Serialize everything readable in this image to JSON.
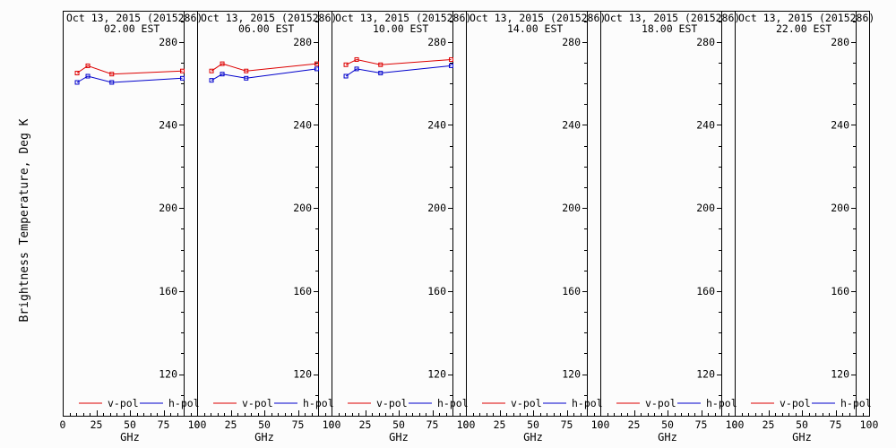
{
  "figure": {
    "ylabel": "Brightness Temperature, Deg K",
    "xlabel": "GHz",
    "colors": {
      "v_pol": "#dd0000",
      "h_pol": "#0000cc",
      "background": "#fcfcfc",
      "axis": "#000000"
    }
  },
  "chart_data": [
    {
      "type": "line",
      "title": "Oct 13, 2015 (2015286)",
      "subtitle": "02.00 EST",
      "xlabel": "GHz",
      "ylabel": "Brightness Temperature, Deg K",
      "xlim": [
        0,
        100
      ],
      "ylim": [
        100,
        295
      ],
      "x_ticks": [
        "0",
        "25",
        "50",
        "75",
        "100"
      ],
      "y_ticks": [
        "120",
        "160",
        "200",
        "240",
        "280"
      ],
      "legend_position": "bottom",
      "series": [
        {
          "name": "v-pol",
          "color": "#dd0000",
          "x": [
            10.7,
            18.7,
            36.5,
            89.0
          ],
          "y": [
            265,
            268.5,
            264.5,
            266
          ]
        },
        {
          "name": "h-pol",
          "color": "#0000cc",
          "x": [
            10.7,
            18.7,
            36.5,
            89.0
          ],
          "y": [
            260.5,
            263.5,
            260.5,
            262.5
          ]
        }
      ]
    },
    {
      "type": "line",
      "title": "Oct 13, 2015 (2015286)",
      "subtitle": "06.00 EST",
      "xlabel": "GHz",
      "ylabel": "",
      "xlim": [
        0,
        100
      ],
      "ylim": [
        100,
        295
      ],
      "x_ticks": [
        "0",
        "25",
        "50",
        "75",
        "100"
      ],
      "y_ticks": [
        "120",
        "160",
        "200",
        "240",
        "280"
      ],
      "legend_position": "bottom",
      "series": [
        {
          "name": "v-pol",
          "color": "#dd0000",
          "x": [
            10.7,
            18.7,
            36.5,
            89.0
          ],
          "y": [
            266,
            269.5,
            266,
            269.5
          ]
        },
        {
          "name": "h-pol",
          "color": "#0000cc",
          "x": [
            10.7,
            18.7,
            36.5,
            89.0
          ],
          "y": [
            261.5,
            264.5,
            262.5,
            267
          ]
        }
      ]
    },
    {
      "type": "line",
      "title": "Oct 13, 2015 (2015286)",
      "subtitle": "10.00 EST",
      "xlabel": "GHz",
      "ylabel": "",
      "xlim": [
        0,
        100
      ],
      "ylim": [
        100,
        295
      ],
      "x_ticks": [
        "0",
        "25",
        "50",
        "75",
        "100"
      ],
      "y_ticks": [
        "120",
        "160",
        "200",
        "240",
        "280"
      ],
      "legend_position": "bottom",
      "series": [
        {
          "name": "v-pol",
          "color": "#dd0000",
          "x": [
            10.7,
            18.7,
            36.5,
            89.0
          ],
          "y": [
            269,
            271.5,
            269,
            271.5
          ]
        },
        {
          "name": "h-pol",
          "color": "#0000cc",
          "x": [
            10.7,
            18.7,
            36.5,
            89.0
          ],
          "y": [
            263.5,
            267,
            265,
            268.5
          ]
        }
      ]
    },
    {
      "type": "line",
      "title": "Oct 13, 2015 (2015286)",
      "subtitle": "14.00 EST",
      "xlabel": "GHz",
      "ylabel": "",
      "xlim": [
        0,
        100
      ],
      "ylim": [
        100,
        295
      ],
      "x_ticks": [
        "0",
        "25",
        "50",
        "75",
        "100"
      ],
      "y_ticks": [
        "120",
        "160",
        "200",
        "240",
        "280"
      ],
      "legend_position": "bottom",
      "series": [
        {
          "name": "v-pol",
          "color": "#dd0000",
          "x": [],
          "y": []
        },
        {
          "name": "h-pol",
          "color": "#0000cc",
          "x": [],
          "y": []
        }
      ]
    },
    {
      "type": "line",
      "title": "Oct 13, 2015 (2015286)",
      "subtitle": "18.00 EST",
      "xlabel": "GHz",
      "ylabel": "",
      "xlim": [
        0,
        100
      ],
      "ylim": [
        100,
        295
      ],
      "x_ticks": [
        "0",
        "25",
        "50",
        "75",
        "100"
      ],
      "y_ticks": [
        "120",
        "160",
        "200",
        "240",
        "280"
      ],
      "legend_position": "bottom",
      "series": [
        {
          "name": "v-pol",
          "color": "#dd0000",
          "x": [],
          "y": []
        },
        {
          "name": "h-pol",
          "color": "#0000cc",
          "x": [],
          "y": []
        }
      ]
    },
    {
      "type": "line",
      "title": "Oct 13, 2015 (2015286)",
      "subtitle": "22.00 EST",
      "xlabel": "GHz",
      "ylabel": "",
      "xlim": [
        0,
        100
      ],
      "ylim": [
        100,
        295
      ],
      "x_ticks": [
        "0",
        "25",
        "50",
        "75",
        "100"
      ],
      "y_ticks": [
        "120",
        "160",
        "200",
        "240",
        "280"
      ],
      "legend_position": "bottom",
      "series": [
        {
          "name": "v-pol",
          "color": "#dd0000",
          "x": [],
          "y": []
        },
        {
          "name": "h-pol",
          "color": "#0000cc",
          "x": [],
          "y": []
        }
      ]
    }
  ]
}
